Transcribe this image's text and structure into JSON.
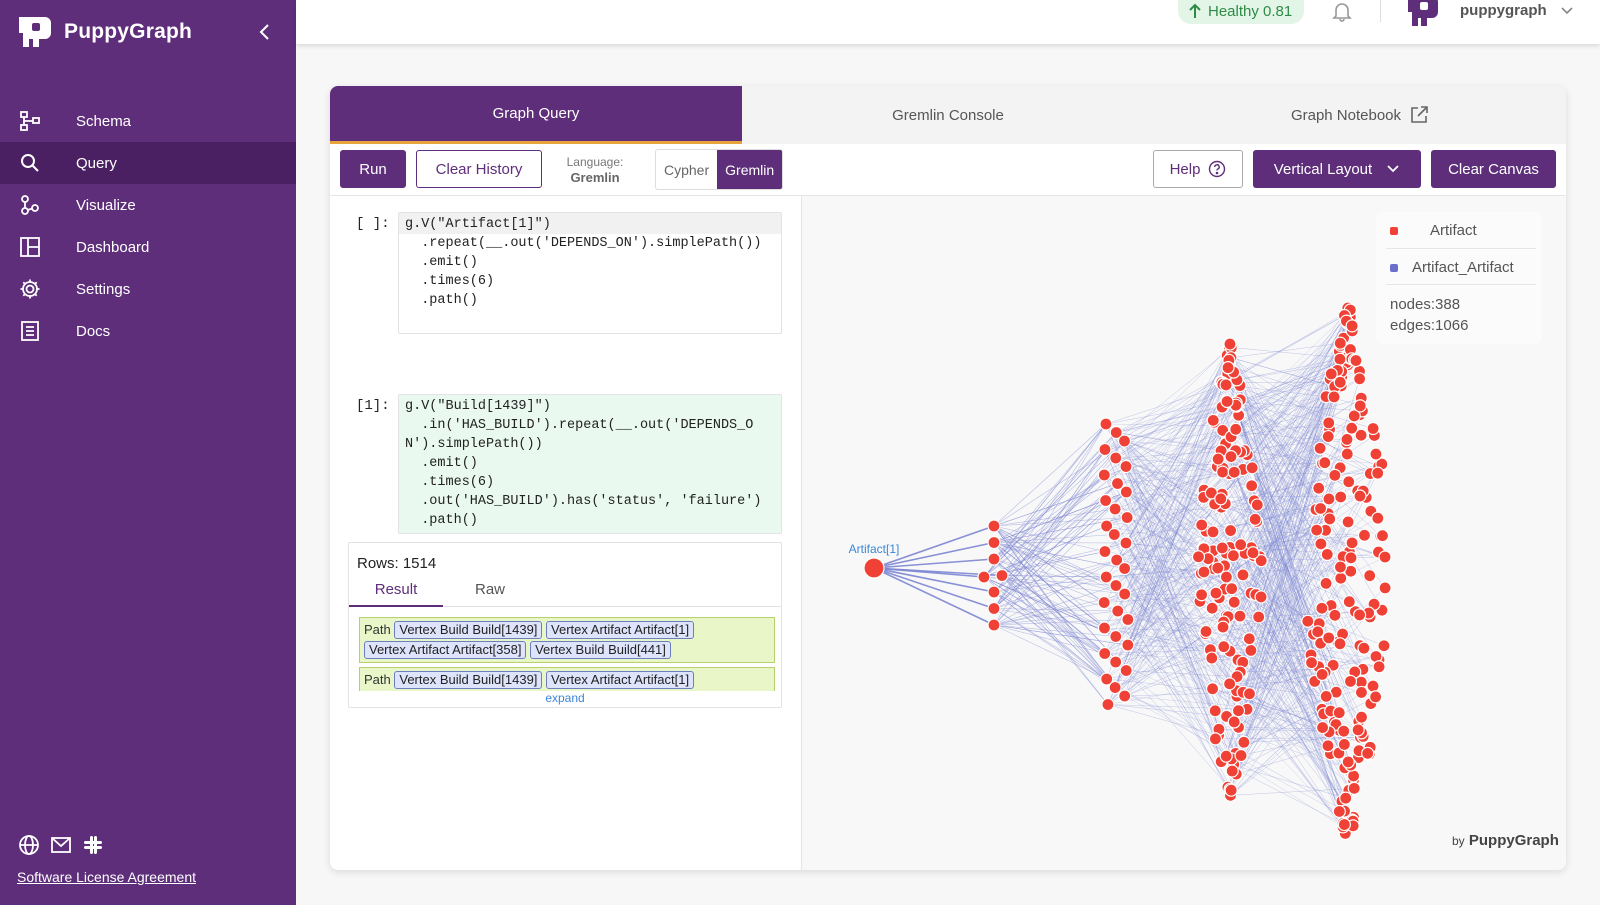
{
  "app": {
    "name": "PuppyGraph"
  },
  "sidebar": {
    "items": [
      {
        "label": "Schema",
        "icon": "schema-icon"
      },
      {
        "label": "Query",
        "icon": "search-icon",
        "active": true
      },
      {
        "label": "Visualize",
        "icon": "visualize-icon"
      },
      {
        "label": "Dashboard",
        "icon": "dashboard-icon"
      },
      {
        "label": "Settings",
        "icon": "gear-icon"
      },
      {
        "label": "Docs",
        "icon": "docs-icon"
      }
    ],
    "bottom_icons": [
      "globe-icon",
      "mail-icon",
      "slack-icon"
    ],
    "license_label": "Software License Agreement"
  },
  "topbar": {
    "health": "Healthy 0.81",
    "health_color": "#2e8b47",
    "username": "puppygraph"
  },
  "tabs": [
    {
      "label": "Graph Query",
      "active": true
    },
    {
      "label": "Gremlin Console"
    },
    {
      "label": "Graph Notebook"
    }
  ],
  "toolbar": {
    "run_label": "Run",
    "clear_history_label": "Clear History",
    "language_label": "Language:",
    "language_value": "Gremlin",
    "lang_options": [
      "Cypher",
      "Gremlin"
    ],
    "help_label": "Help",
    "layout_label": "Vertical Layout",
    "clear_canvas_label": "Clear Canvas"
  },
  "cells": [
    {
      "prompt": "[ ]:",
      "first_line": "g.V(\"Artifact[1]\")",
      "rest": "  .repeat(__.out('DEPENDS_ON').simplePath())\n  .emit()\n  .times(6)\n  .path()"
    },
    {
      "prompt": "[1]:",
      "code": "g.V(\"Build[1439]\")\n  .in('HAS_BUILD').repeat(__.out('DEPENDS_O\nN').simplePath())\n  .emit()\n  .times(6)\n  .out('HAS_BUILD').has('status', 'failure')\n  .path()"
    }
  ],
  "results": {
    "rows_label": "Rows: 1514",
    "tabs": [
      "Result",
      "Raw"
    ],
    "path_label": "Path",
    "paths": [
      [
        "Vertex Build Build[1439]",
        "Vertex Artifact Artifact[1]",
        "Vertex Artifact Artifact[358]",
        "Vertex Build Build[441]"
      ],
      [
        "Vertex Build Build[1439]",
        "Vertex Artifact Artifact[1]"
      ]
    ],
    "expand_label": "expand"
  },
  "graph": {
    "root_label": "Artifact[1]",
    "node_color": "#ef4136",
    "edge_color": "#7b84d1",
    "legend": [
      {
        "label": "Artifact",
        "color": "#ef4136"
      },
      {
        "label": "Artifact_Artifact",
        "color": "#6a6fc9"
      }
    ],
    "nodes_label": "nodes:388",
    "edges_label": "edges:1066",
    "byline_by": "by",
    "byline_name": "PuppyGraph"
  }
}
